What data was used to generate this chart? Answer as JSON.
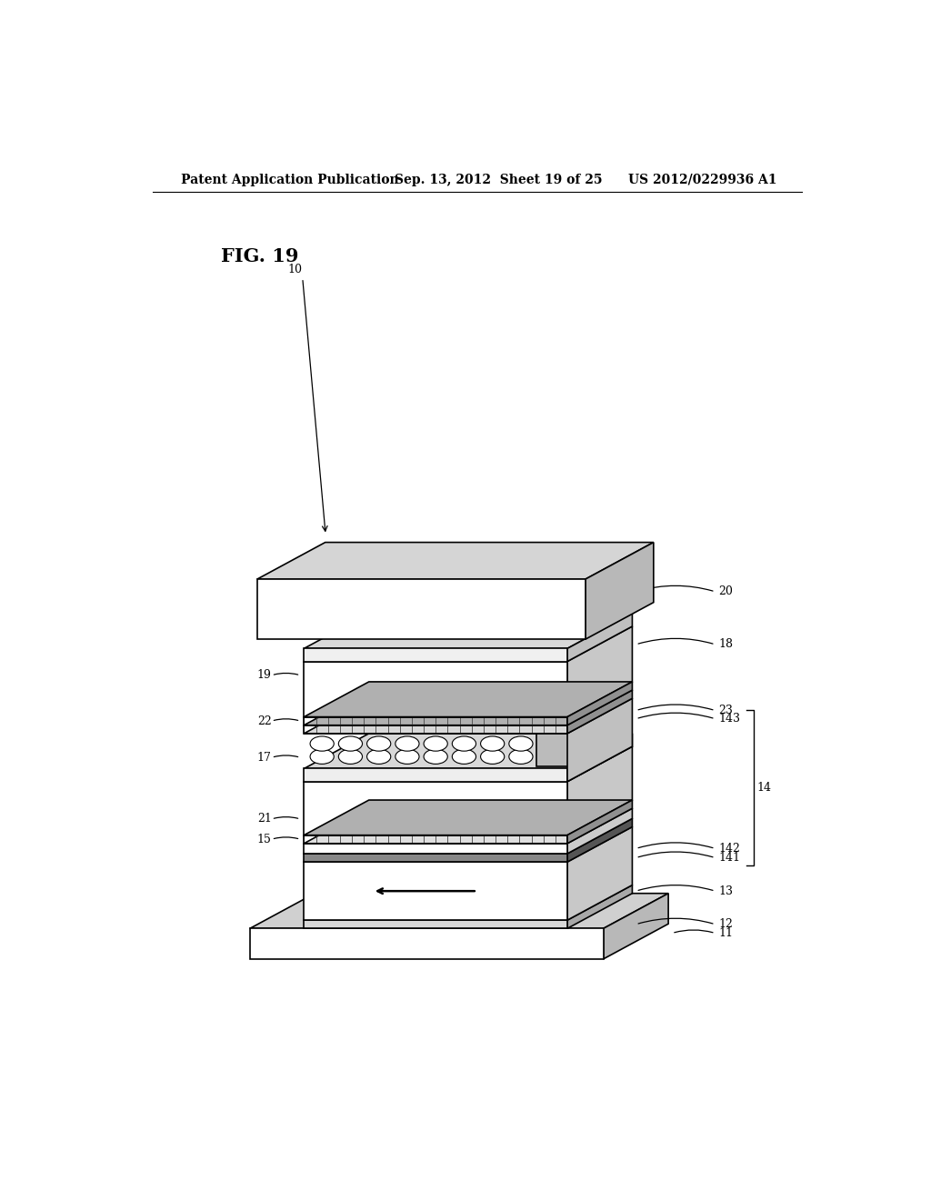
{
  "header_left": "Patent Application Publication",
  "header_mid": "Sep. 13, 2012  Sheet 19 of 25",
  "header_right": "US 2012/0229936 A1",
  "background_color": "#ffffff",
  "line_color": "#000000",
  "fig_label": "FIG. 19"
}
